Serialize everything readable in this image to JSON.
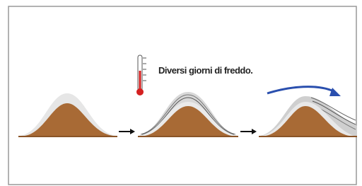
{
  "caption": "Diversi giorni di freddo."
}
